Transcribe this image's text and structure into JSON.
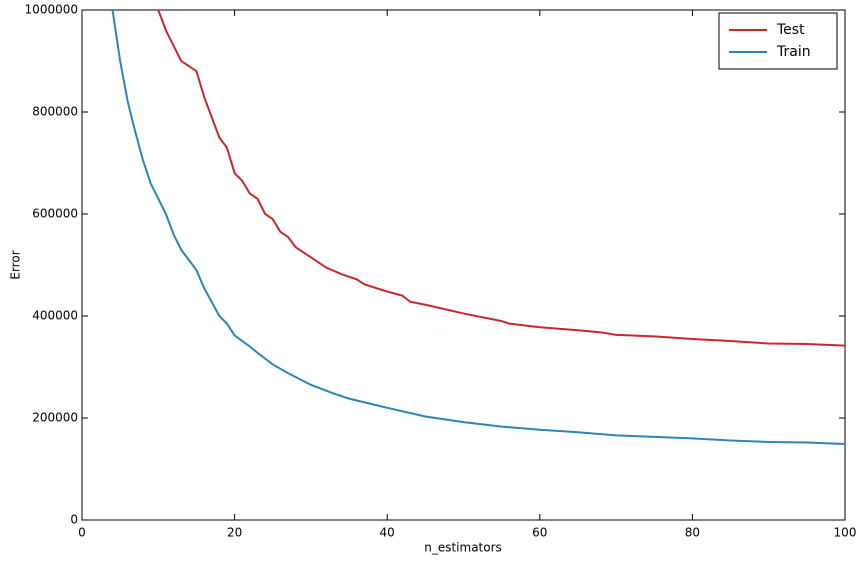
{
  "chart_data": {
    "type": "line",
    "xlabel": "n_estimators",
    "ylabel": "Error",
    "xlim": [
      0,
      100
    ],
    "ylim": [
      0,
      1000000
    ],
    "xticks": [
      0,
      20,
      40,
      60,
      80,
      100
    ],
    "yticks": [
      0,
      200000,
      400000,
      600000,
      800000,
      1000000
    ],
    "legend": "upper right",
    "series": [
      {
        "name": "Test",
        "color": "#c8282c",
        "x": [
          10,
          11,
          12,
          13,
          15,
          16,
          18,
          19,
          20,
          21,
          22,
          23,
          24,
          25,
          26,
          27,
          28,
          30,
          32,
          34,
          36,
          37,
          40,
          42,
          43,
          45,
          50,
          55,
          56,
          60,
          65,
          68,
          70,
          75,
          80,
          85,
          90,
          95,
          100
        ],
        "values": [
          1000000,
          960000,
          930000,
          900000,
          880000,
          830000,
          750000,
          730000,
          680000,
          665000,
          640000,
          630000,
          600000,
          590000,
          565000,
          555000,
          535000,
          515000,
          495000,
          482000,
          472000,
          462000,
          448000,
          440000,
          428000,
          422000,
          405000,
          390000,
          385000,
          378000,
          372000,
          368000,
          363000,
          360000,
          355000,
          351000,
          346000,
          345000,
          342000
        ]
      },
      {
        "name": "Train",
        "color": "#2a86b4",
        "x": [
          4,
          5,
          6,
          7,
          8,
          9,
          10,
          11,
          12,
          13,
          15,
          16,
          18,
          19,
          20,
          22,
          23,
          25,
          27,
          30,
          33,
          35,
          40,
          45,
          50,
          55,
          60,
          65,
          70,
          75,
          80,
          85,
          90,
          95,
          100
        ],
        "values": [
          1000000,
          900000,
          820000,
          760000,
          705000,
          660000,
          630000,
          600000,
          560000,
          530000,
          490000,
          455000,
          400000,
          385000,
          362000,
          340000,
          328000,
          305000,
          288000,
          265000,
          248000,
          238000,
          220000,
          203000,
          192000,
          183000,
          177000,
          172000,
          166000,
          163000,
          160000,
          156000,
          153000,
          152000,
          149000
        ]
      }
    ]
  }
}
